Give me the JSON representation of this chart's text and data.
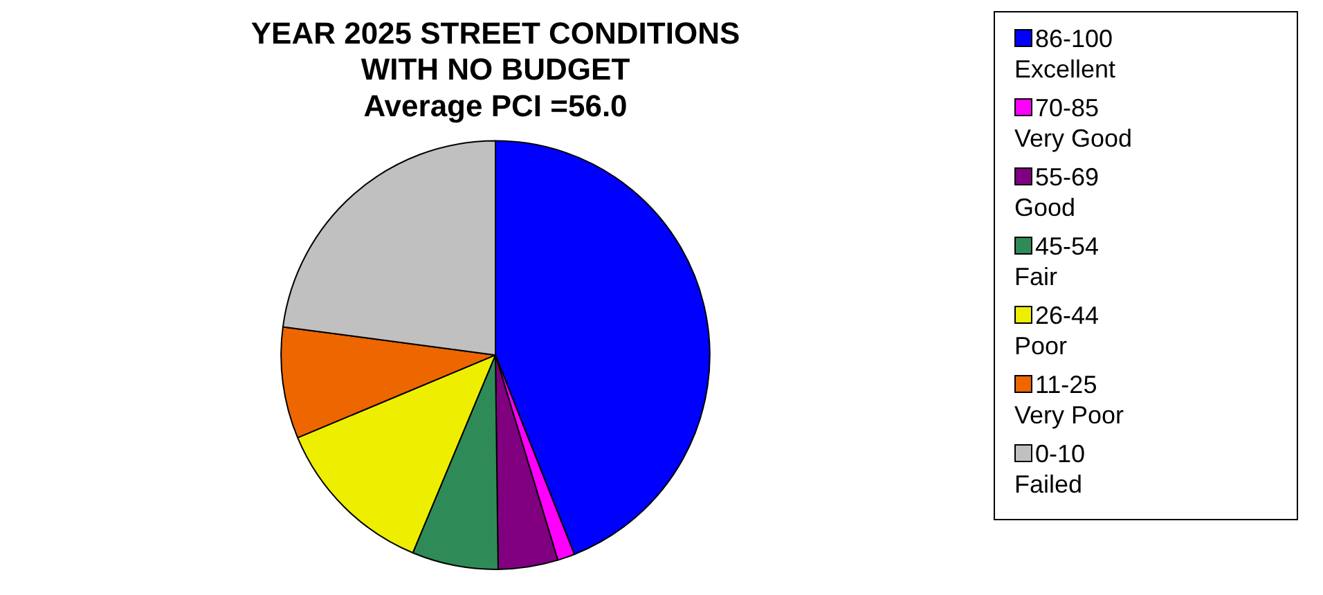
{
  "chart_data": {
    "type": "pie",
    "title": [
      "YEAR 2025 STREET CONDITIONS",
      "WITH NO BUDGET",
      "Average PCI =56.0"
    ],
    "categories": [
      "86-100 Excellent",
      "70-85 Very Good",
      "55-69 Good",
      "45-54 Fair",
      "26-44 Poor",
      "11-25 Very Poor",
      "0-10 Failed"
    ],
    "values": [
      44,
      1.3,
      4.5,
      6.5,
      12.4,
      8.4,
      22.9
    ],
    "colors": [
      "#0000ff",
      "#ff00ff",
      "#800080",
      "#2e8b57",
      "#eeee00",
      "#ee6600",
      "#c0c0c0"
    ],
    "legend": "right"
  }
}
